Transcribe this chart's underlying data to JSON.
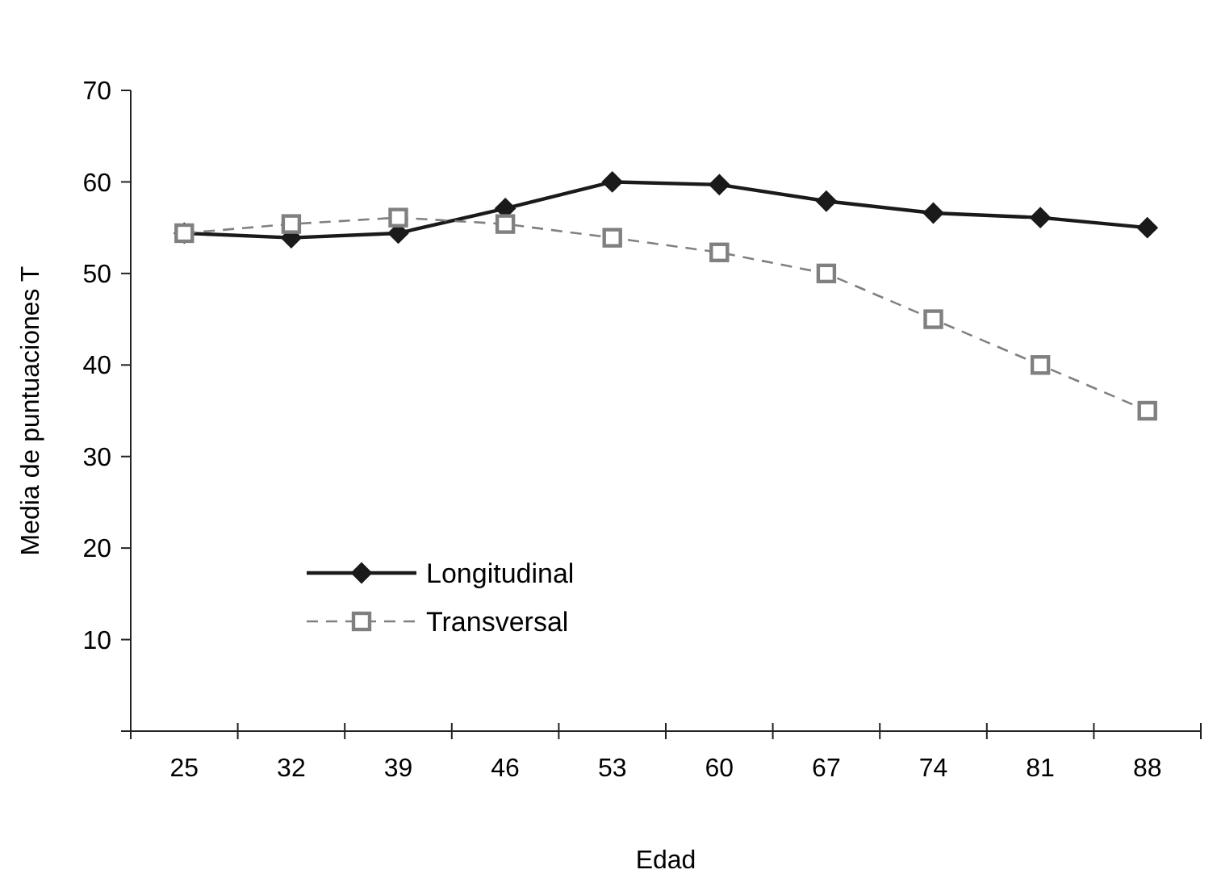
{
  "chart_data": {
    "type": "line",
    "xlabel": "Edad",
    "ylabel": "Media de puntuaciones T",
    "categories": [
      "25",
      "32",
      "39",
      "46",
      "53",
      "60",
      "67",
      "74",
      "81",
      "88"
    ],
    "ylim": [
      0,
      70
    ],
    "yticks": [
      {
        "value": 0,
        "label": null
      },
      10,
      20,
      30,
      40,
      50,
      60,
      70
    ],
    "grid": false,
    "legend": "bottom left",
    "series": [
      {
        "name": "Longitudinal",
        "color": "#1a1a1a",
        "marker": "diamond",
        "line_style": "solid",
        "values": [
          54.4,
          53.9,
          54.4,
          57.1,
          60,
          59.7,
          57.9,
          56.6,
          56.1,
          55.0
        ]
      },
      {
        "name": "Transversal",
        "color": "#808080",
        "marker": "square",
        "line_style": "dashed",
        "values": [
          54.4,
          55.4,
          56.1,
          55.4,
          53.9,
          52.3,
          50,
          45,
          40,
          35
        ]
      }
    ]
  }
}
